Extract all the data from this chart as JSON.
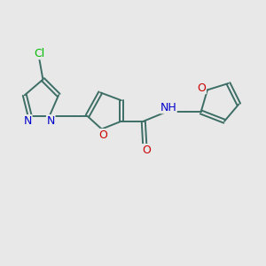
{
  "background_color": "#e8e8e8",
  "bond_color": "#3d6e65",
  "bond_width": 1.4,
  "atom_colors": {
    "Cl": "#00bb00",
    "N": "#0000cc",
    "O": "#cc0000",
    "H": "#555555"
  },
  "font_size": 9,
  "fig_size": [
    3.0,
    3.0
  ],
  "dpi": 100
}
